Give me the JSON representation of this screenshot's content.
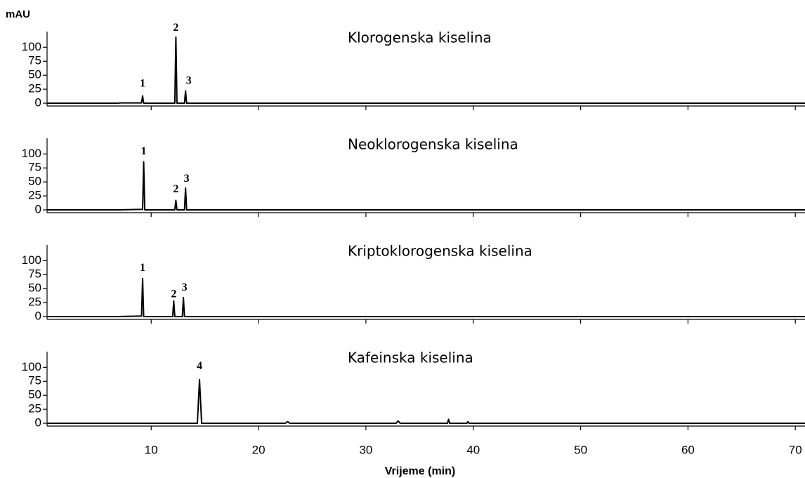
{
  "chart_data": [
    {
      "type": "line",
      "title": "Klorogenska kiselina",
      "ylabel": "mAU",
      "x": [
        0.3,
        7,
        7.05,
        9.1,
        9.2,
        9.3,
        12.2,
        12.3,
        12.4,
        13.1,
        13.2,
        13.3,
        70.9
      ],
      "values": [
        0,
        0,
        0.5,
        0.5,
        13,
        0,
        0,
        118,
        0,
        0,
        22,
        0,
        0
      ],
      "color": "#000000",
      "xlim": [
        0.3,
        70.9
      ],
      "xticks": [
        10,
        20,
        30,
        40,
        50,
        60,
        70
      ],
      "ylim": [
        -5,
        128
      ],
      "yticks": [
        0,
        25,
        50,
        75,
        100
      ],
      "annotations": [
        {
          "text": "1",
          "x": 9.2,
          "y": 34
        },
        {
          "text": "2",
          "x": 12.3,
          "y": 134
        },
        {
          "text": "3",
          "x": 13.5,
          "y": 39
        }
      ]
    },
    {
      "type": "line",
      "title": "Neoklorogenska kiselina",
      "x": [
        0.3,
        7,
        9.2,
        9.3,
        9.4,
        12.2,
        12.3,
        12.4,
        13.1,
        13.2,
        13.3,
        70.9
      ],
      "values": [
        0,
        0,
        1,
        86,
        0,
        0,
        17,
        0,
        0,
        39,
        0,
        0
      ],
      "color": "#000000",
      "xlim": [
        0.3,
        70.9
      ],
      "xticks": [
        10,
        20,
        30,
        40,
        50,
        60,
        70
      ],
      "ylim": [
        -5,
        128
      ],
      "yticks": [
        0,
        25,
        50,
        75,
        100
      ],
      "annotations": [
        {
          "text": "1",
          "x": 9.3,
          "y": 104
        },
        {
          "text": "2",
          "x": 12.3,
          "y": 36
        },
        {
          "text": "3",
          "x": 13.3,
          "y": 55
        }
      ]
    },
    {
      "type": "line",
      "title": "Kriptoklorogenska kiselina",
      "x": [
        0.3,
        7,
        9.1,
        9.2,
        9.3,
        12.0,
        12.1,
        12.2,
        12.9,
        13.0,
        13.1,
        70.9
      ],
      "values": [
        0,
        0,
        1,
        68,
        0,
        0,
        28,
        0,
        0,
        34,
        0,
        0
      ],
      "color": "#000000",
      "xlim": [
        0.3,
        70.9
      ],
      "xticks": [
        10,
        20,
        30,
        40,
        50,
        60,
        70
      ],
      "ylim": [
        -5,
        128
      ],
      "yticks": [
        0,
        25,
        50,
        75,
        100
      ],
      "annotations": [
        {
          "text": "1",
          "x": 9.2,
          "y": 86
        },
        {
          "text": "2",
          "x": 12.1,
          "y": 39
        },
        {
          "text": "3",
          "x": 13.1,
          "y": 51
        }
      ]
    },
    {
      "type": "line",
      "title": "Kafeinska kiselina",
      "xlabel": "Vrijeme (min)",
      "x": [
        0.3,
        14.3,
        14.5,
        14.7,
        22.5,
        22.7,
        22.9,
        32.8,
        33.0,
        33.2,
        37.6,
        37.7,
        37.8,
        39.4,
        39.5,
        39.6,
        70.9
      ],
      "values": [
        0,
        0,
        78,
        0,
        0,
        3,
        0,
        0,
        4,
        0,
        0,
        7,
        0,
        0,
        3,
        0,
        0
      ],
      "color": "#000000",
      "xlim": [
        0.3,
        70.9
      ],
      "xticks": [
        10,
        20,
        30,
        40,
        50,
        60,
        70
      ],
      "ylim": [
        -5,
        128
      ],
      "yticks": [
        0,
        25,
        50,
        75,
        100
      ],
      "annotations": [
        {
          "text": "4",
          "x": 14.5,
          "y": 101
        }
      ]
    }
  ]
}
